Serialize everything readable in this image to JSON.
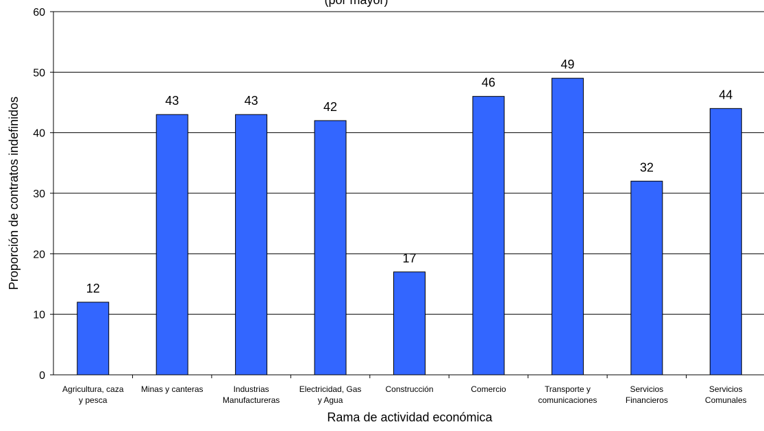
{
  "chart_data": {
    "type": "bar",
    "title": "(por mayor)",
    "xlabel": "Rama de actividad económica",
    "ylabel": "Proporción de contratos indefinidos",
    "ylim": [
      0,
      60
    ],
    "yticks": [
      0,
      10,
      20,
      30,
      40,
      50,
      60
    ],
    "grid": true,
    "categories": [
      [
        "Agricultura, caza",
        "y pesca"
      ],
      [
        "Minas y canteras"
      ],
      [
        "Industrias",
        "Manufactureras"
      ],
      [
        "Electricidad, Gas",
        "y Agua"
      ],
      [
        "Construcción"
      ],
      [
        "Comercio"
      ],
      [
        "Transporte  y",
        "comunicaciones"
      ],
      [
        "Servicios",
        "Financieros"
      ],
      [
        "Servicios",
        "Comunales"
      ]
    ],
    "values": [
      12,
      43,
      43,
      42,
      17,
      46,
      49,
      32,
      44
    ],
    "colors": {
      "bar_fill": "#3366FF",
      "bar_stroke": "#000000",
      "grid": "#000000"
    }
  }
}
